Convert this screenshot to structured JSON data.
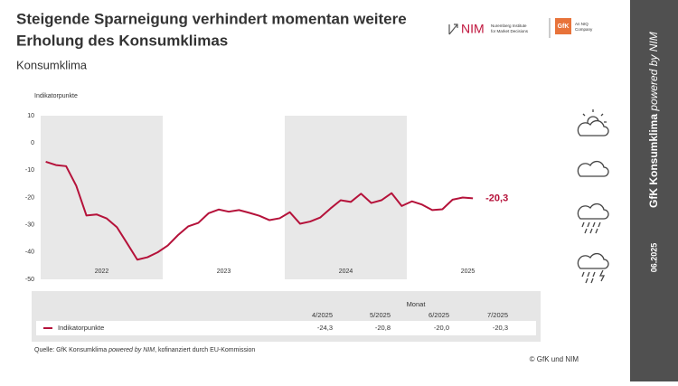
{
  "header": {
    "title_line1": "Steigende Sparneigung verhindert momentan weitere",
    "title_line2": "Erholung des Konsumklimas",
    "subtitle": "Konsumklima",
    "logo_nim": "NIM",
    "logo_nim_sub1": "Nuremberg Institute",
    "logo_nim_sub2": "for Market Decisions",
    "logo_gfk": "GfK",
    "logo_gfk_sub1": "An NIQ",
    "logo_gfk_sub2": "Company"
  },
  "sidebar": {
    "title": "GfK Konsumklima",
    "title_italic": "powered by NIM",
    "date": "06.2025"
  },
  "chart_data": {
    "type": "line",
    "y_label": "Indikatorpunkte",
    "categories": [
      null,
      null,
      null,
      null,
      null,
      null,
      "2022",
      null,
      null,
      null,
      null,
      null,
      null,
      null,
      null,
      null,
      null,
      null,
      "2023",
      null,
      null,
      null,
      null,
      null,
      null,
      null,
      null,
      null,
      null,
      null,
      "2024",
      null,
      null,
      null,
      null,
      null,
      null,
      null,
      null,
      null,
      null,
      null,
      "2025"
    ],
    "series": [
      {
        "name": "Indikatorpunkte",
        "color": "#b5123a",
        "values": [
          -6.9,
          -8.1,
          -8.5,
          -15.7,
          -26.6,
          -26.2,
          -27.7,
          -30.9,
          -36.8,
          -42.8,
          -41.9,
          -40.1,
          -37.6,
          -33.8,
          -30.6,
          -29.3,
          -25.8,
          -24.4,
          -25.2,
          -24.6,
          -25.6,
          -26.7,
          -28.3,
          -27.6,
          -25.4,
          -29.6,
          -28.8,
          -27.3,
          -24.0,
          -21.0,
          -21.6,
          -18.6,
          -22.0,
          -21.0,
          -18.4,
          -23.1,
          -21.4,
          -22.6,
          -24.6,
          -24.3,
          -20.8,
          -20.0,
          -20.3
        ],
        "value_labels": [
          null,
          null,
          null,
          null,
          null,
          null,
          null,
          null,
          null,
          null,
          null,
          null,
          null,
          null,
          null,
          null,
          null,
          null,
          null,
          null,
          null,
          null,
          null,
          null,
          null,
          null,
          null,
          null,
          null,
          null,
          null,
          null,
          null,
          null,
          null,
          null,
          null,
          null,
          null,
          null,
          null,
          null,
          "-20,3"
        ]
      }
    ],
    "ylim": [
      -50,
      10
    ],
    "yticks": [
      10,
      0,
      -10,
      -20,
      -30,
      -40,
      -50
    ],
    "grid": false
  },
  "table": {
    "header": "Monat",
    "columns": [
      "4/2025",
      "5/2025",
      "6/2025",
      "7/2025"
    ],
    "rows": [
      {
        "label": "Indikatorpunkte",
        "cells": [
          "-24,3",
          "-20,8",
          "-20,0",
          "-20,3"
        ]
      }
    ]
  },
  "footer": {
    "source_a": "Quelle: GfK Konsumklima ",
    "source_b": "powered by NIM",
    "source_c": ", kofinanziert durch EU-Kommission",
    "copyright": "© GfK und NIM"
  }
}
